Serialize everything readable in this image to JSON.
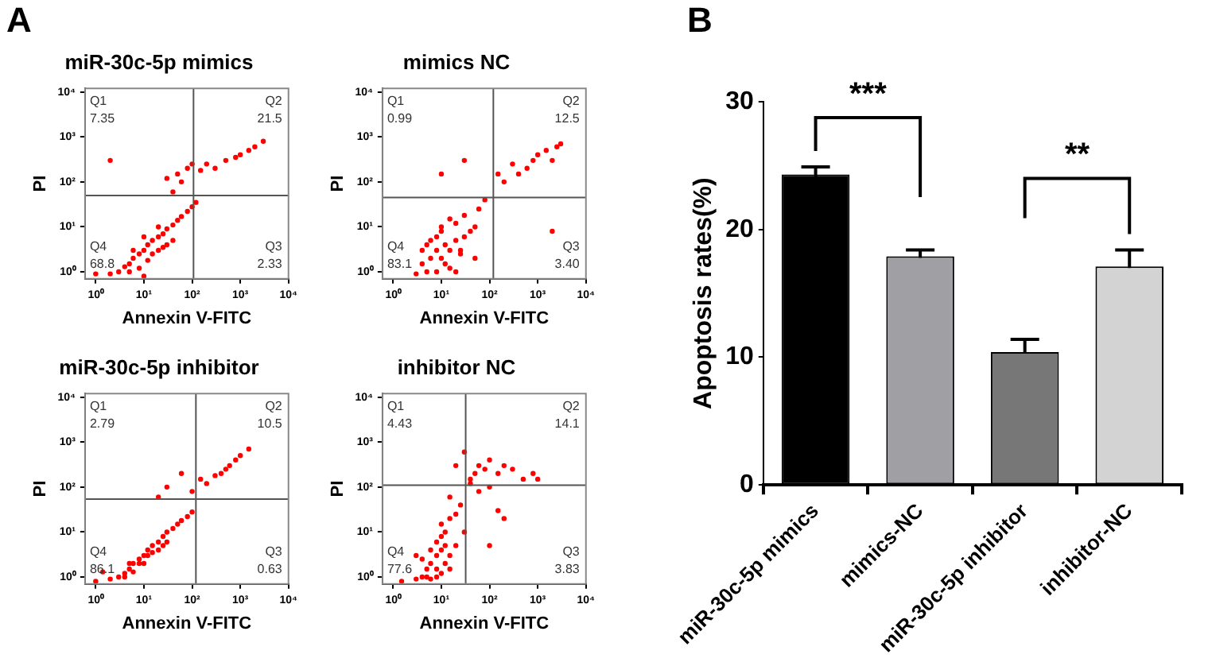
{
  "chart_data": [
    {
      "type": "scatter",
      "title": "miR-30c-5p mimics",
      "xlabel": "Annexin V-FITC",
      "ylabel": "PI",
      "log": "xy",
      "grid": false,
      "marker": "circle",
      "annotations": [
        "A",
        "Q1",
        "7.35",
        "Q2",
        "21.5",
        "Q4",
        "68.8",
        "Q3",
        "2.33"
      ],
      "ref_lines": [
        {
          "axis": "x",
          "value": 107,
          "color": "#555555"
        },
        {
          "axis": "y",
          "value": 50,
          "color": "#555555"
        }
      ],
      "xlim": [
        0.6,
        10000
      ],
      "ylim": [
        0.7,
        12000
      ],
      "xticks": [
        {
          "value": 1,
          "label": "10⁰"
        },
        {
          "value": 10,
          "label": "10¹"
        },
        {
          "value": 100,
          "label": "10²"
        },
        {
          "value": 1000,
          "label": "10³"
        },
        {
          "value": 10000,
          "label": "10⁴"
        }
      ],
      "yticks": [
        {
          "value": 1,
          "label": "10⁰"
        },
        {
          "value": 10,
          "label": "10¹"
        },
        {
          "value": 100,
          "label": "10²"
        },
        {
          "value": 1000,
          "label": "10³"
        },
        {
          "value": 10000,
          "label": "10⁴"
        }
      ],
      "series": [
        {
          "color": "#ff0000",
          "x": [
            2,
            3,
            4,
            5,
            6,
            8,
            10,
            12,
            15,
            20,
            25,
            30,
            40,
            50,
            60,
            80,
            100,
            120,
            5,
            8,
            12,
            20,
            30,
            40,
            6,
            10,
            20,
            15,
            25,
            50,
            80,
            150,
            200,
            300,
            500,
            800,
            1000,
            1500,
            2000,
            3000,
            30,
            60,
            100,
            40,
            2,
            1,
            10
          ],
          "values": [
            0.9,
            1,
            1.3,
            1.5,
            2,
            2.5,
            3,
            4,
            5,
            6,
            7,
            9,
            11,
            14,
            17,
            22,
            28,
            35,
            1,
            1.2,
            1.8,
            3,
            4,
            5,
            3,
            6,
            10,
            2.5,
            3.5,
            150,
            200,
            180,
            250,
            200,
            300,
            350,
            400,
            500,
            600,
            800,
            120,
            100,
            250,
            60,
            300,
            0.9,
            0.8
          ]
        }
      ]
    },
    {
      "type": "scatter",
      "title": "mimics NC",
      "xlabel": "Annexin V-FITC",
      "ylabel": "PI",
      "log": "xy",
      "grid": false,
      "marker": "circle",
      "annotations": [
        "Q1",
        "0.99",
        "Q2",
        "12.5",
        "Q4",
        "83.1",
        "Q3",
        "3.40"
      ],
      "ref_lines": [
        {
          "axis": "x",
          "value": 120,
          "color": "#555555"
        },
        {
          "axis": "y",
          "value": 45,
          "color": "#555555"
        }
      ],
      "xlim": [
        0.6,
        10000
      ],
      "ylim": [
        0.7,
        12000
      ],
      "xticks": [
        {
          "value": 1,
          "label": "10⁰"
        },
        {
          "value": 10,
          "label": "10¹"
        },
        {
          "value": 100,
          "label": "10²"
        },
        {
          "value": 1000,
          "label": "10³"
        },
        {
          "value": 10000,
          "label": "10⁴"
        }
      ],
      "yticks": [
        {
          "value": 1,
          "label": "10⁰"
        },
        {
          "value": 10,
          "label": "10¹"
        },
        {
          "value": 100,
          "label": "10²"
        },
        {
          "value": 1000,
          "label": "10³"
        },
        {
          "value": 10000,
          "label": "10⁴"
        }
      ],
      "series": [
        {
          "color": "#ff0000",
          "x": [
            3,
            4,
            5,
            6,
            8,
            10,
            12,
            15,
            20,
            25,
            30,
            40,
            50,
            5,
            8,
            10,
            15,
            20,
            8,
            12,
            20,
            30,
            60,
            80,
            4,
            6,
            10,
            15,
            25,
            200,
            400,
            600,
            800,
            1000,
            1500,
            2000,
            2500,
            3000,
            300,
            150,
            30,
            10,
            50,
            2000
          ],
          "values": [
            0.9,
            1.5,
            1,
            2,
            3,
            2,
            4,
            3,
            5,
            2.5,
            6,
            8,
            10,
            4,
            6,
            8,
            1.2,
            1,
            1,
            1.5,
            12,
            18,
            25,
            40,
            3,
            5,
            10,
            15,
            3,
            100,
            150,
            200,
            300,
            400,
            500,
            300,
            600,
            700,
            250,
            150,
            300,
            150,
            2,
            8
          ]
        }
      ]
    },
    {
      "type": "scatter",
      "title": "miR-30c-5p inhibitor",
      "xlabel": "Annexin V-FITC",
      "ylabel": "PI",
      "log": "xy",
      "grid": false,
      "marker": "circle",
      "annotations": [
        "Q1",
        "2.79",
        "Q2",
        "10.5",
        "Q4",
        "86.1",
        "Q3",
        "0.63"
      ],
      "ref_lines": [
        {
          "axis": "x",
          "value": 120,
          "color": "#555555"
        },
        {
          "axis": "y",
          "value": 54,
          "color": "#555555"
        }
      ],
      "xlim": [
        0.6,
        10000
      ],
      "ylim": [
        0.7,
        12000
      ],
      "xticks": [
        {
          "value": 1,
          "label": "10⁰"
        },
        {
          "value": 10,
          "label": "10¹"
        },
        {
          "value": 100,
          "label": "10²"
        },
        {
          "value": 1000,
          "label": "10³"
        },
        {
          "value": 10000,
          "label": "10⁴"
        }
      ],
      "yticks": [
        {
          "value": 1,
          "label": "10⁰"
        },
        {
          "value": 10,
          "label": "10¹"
        },
        {
          "value": 100,
          "label": "10²"
        },
        {
          "value": 1000,
          "label": "10³"
        },
        {
          "value": 10000,
          "label": "10⁴"
        }
      ],
      "series": [
        {
          "color": "#ff0000",
          "x": [
            2,
            3,
            4,
            5,
            6,
            8,
            10,
            12,
            15,
            20,
            25,
            30,
            40,
            50,
            60,
            80,
            100,
            4,
            6,
            8,
            12,
            20,
            30,
            5,
            10,
            15,
            25,
            1,
            1.4,
            200,
            300,
            400,
            600,
            800,
            1000,
            1500,
            500,
            100,
            150,
            30,
            20,
            60
          ],
          "values": [
            0.9,
            1,
            1.2,
            1.5,
            2,
            2.5,
            3,
            4,
            5,
            6,
            8,
            10,
            12,
            15,
            18,
            22,
            28,
            1,
            1.3,
            2,
            3,
            4,
            6,
            2,
            2,
            3.5,
            5,
            0.8,
            1.3,
            120,
            180,
            200,
            300,
            400,
            500,
            700,
            250,
            80,
            150,
            100,
            60,
            200
          ]
        }
      ]
    },
    {
      "type": "scatter",
      "title": "inhibitor NC",
      "xlabel": "Annexin V-FITC",
      "ylabel": "PI",
      "log": "xy",
      "grid": false,
      "marker": "circle",
      "annotations": [
        "Q1",
        "4.43",
        "Q2",
        "14.1",
        "Q4",
        "77.6",
        "Q3",
        "3.83"
      ],
      "ref_lines": [
        {
          "axis": "x",
          "value": 32,
          "color": "#555555"
        },
        {
          "axis": "y",
          "value": 110,
          "color": "#555555"
        }
      ],
      "xlim": [
        0.6,
        10000
      ],
      "ylim": [
        0.7,
        12000
      ],
      "xticks": [
        {
          "value": 1,
          "label": "10⁰"
        },
        {
          "value": 10,
          "label": "10¹"
        },
        {
          "value": 100,
          "label": "10²"
        },
        {
          "value": 1000,
          "label": "10³"
        },
        {
          "value": 10000,
          "label": "10⁴"
        }
      ],
      "yticks": [
        {
          "value": 1,
          "label": "10⁰"
        },
        {
          "value": 10,
          "label": "10¹"
        },
        {
          "value": 100,
          "label": "10²"
        },
        {
          "value": 1000,
          "label": "10³"
        },
        {
          "value": 10000,
          "label": "10⁴"
        }
      ],
      "series": [
        {
          "color": "#ff0000",
          "x": [
            3,
            4,
            5,
            6,
            8,
            10,
            12,
            15,
            5,
            8,
            10,
            12,
            6,
            8,
            10,
            15,
            20,
            4,
            6,
            8,
            10,
            12,
            15,
            20,
            30,
            25,
            40,
            50,
            60,
            80,
            100,
            150,
            200,
            300,
            500,
            800,
            30,
            40,
            60,
            100,
            150,
            20,
            15,
            100,
            200,
            1000,
            3,
            1.5
          ],
          "values": [
            0.9,
            1,
            1.5,
            2,
            3,
            4,
            5,
            3,
            1,
            1.5,
            8,
            10,
            4,
            6,
            15,
            20,
            25,
            2.5,
            0.9,
            1,
            1.2,
            2,
            1.5,
            5,
            10,
            40,
            150,
            200,
            300,
            250,
            400,
            200,
            300,
            250,
            150,
            200,
            600,
            120,
            80,
            100,
            30,
            300,
            60,
            5,
            20,
            150,
            3,
            0.8
          ]
        }
      ]
    },
    {
      "type": "bar",
      "ylabel": "Apoptosis rates(%)",
      "grid": false,
      "annotations": [
        "B",
        "***",
        "**"
      ],
      "categories": [
        "miR-30c-5p mimics",
        "mimics-NC",
        "miR-30c-5p inhibitor",
        "inhibitor-NC"
      ],
      "values": [
        24.3,
        17.9,
        10.4,
        17.1
      ],
      "errors": [
        0.6,
        0.5,
        1.0,
        1.3
      ],
      "colors": [
        "#000000",
        "#a0a0a4",
        "#777777",
        "#d3d3d3"
      ],
      "ylim": [
        0,
        30
      ],
      "yticks": [
        0,
        10,
        20,
        30
      ]
    }
  ]
}
